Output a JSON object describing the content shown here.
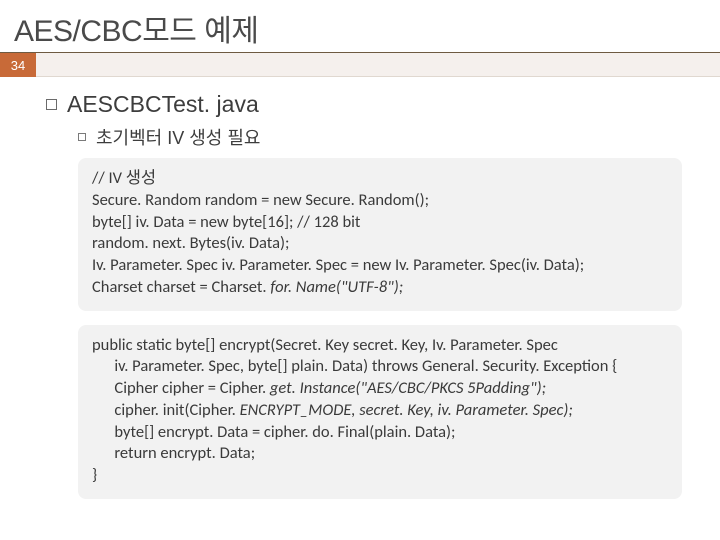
{
  "title": "AES/CBC모드 예제",
  "page_number": "34",
  "heading": "AESCBCTest. java",
  "subheading": "초기벡터 IV 생성 필요",
  "colors": {
    "title_underline": "#6e5a41",
    "page_badge_bg": "#c86a38",
    "page_badge_fg": "#ffffff",
    "strip_bg": "#f5f0ed",
    "code_bg": "#f2f2f2",
    "text": "#3a3a3a"
  },
  "code_block_1": {
    "lines": [
      "// IV 생성",
      "Secure. Random random = new Secure. Random();",
      "byte[] iv. Data = new byte[16]; // 128 bit",
      "random. next. Bytes(iv. Data);",
      "Iv. Parameter. Spec iv. Parameter. Spec = new Iv. Parameter. Spec(iv. Data);"
    ],
    "line_italic_prefix": "Charset charset = Charset. ",
    "line_italic_part": "for. Name(\"UTF-8\");"
  },
  "code_block_2": {
    "line1": "public static byte[] encrypt(Secret. Key secret. Key, Iv. Parameter. Spec",
    "line2_indent": "      iv. Parameter. Spec, byte[] plain. Data) throws General. Security. Exception {",
    "line3_prefix": "      Cipher cipher = Cipher. ",
    "line3_italic": "get. Instance(\"AES/CBC/PKCS 5Padding\");",
    "line4_prefix": "      cipher. init(Cipher. ",
    "line4_italic": "ENCRYPT_MODE, secret. Key, iv. Parameter. Spec);",
    "line5": "      byte[] encrypt. Data = cipher. do. Final(plain. Data);",
    "line6": "      return encrypt. Data;",
    "line7": "}"
  }
}
